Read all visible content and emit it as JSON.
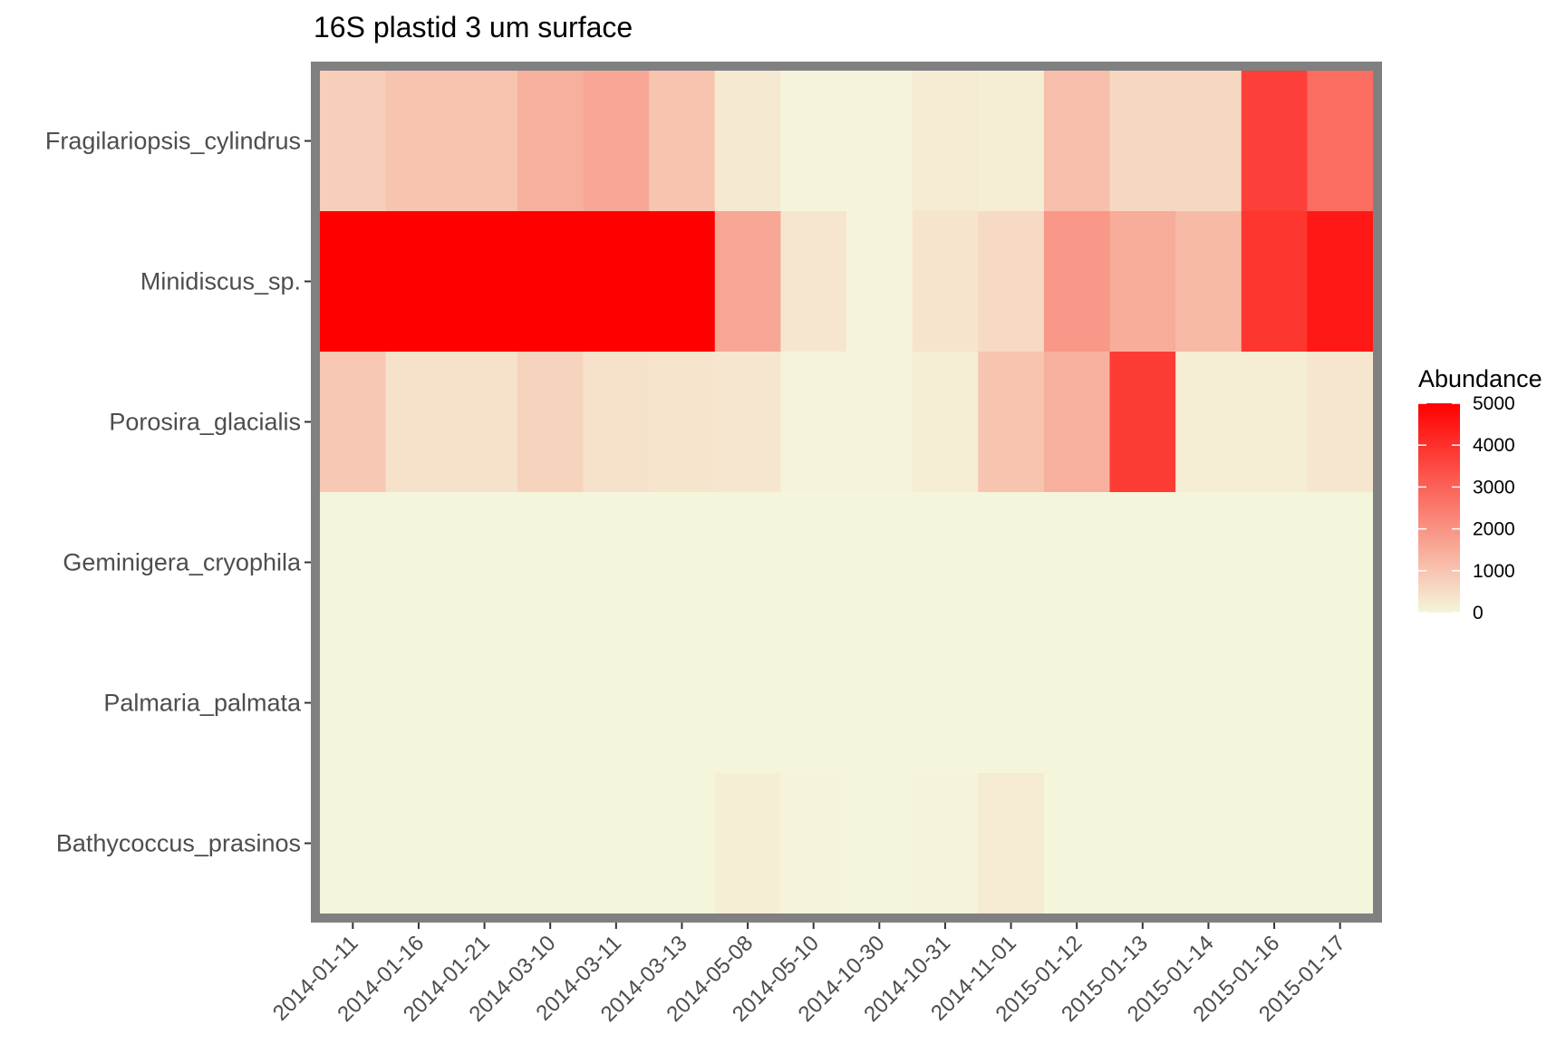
{
  "chart_data": {
    "type": "heatmap",
    "title": "16S plastid 3 um surface",
    "xlabel": "",
    "ylabel": "",
    "x": [
      "2014-01-11",
      "2014-01-16",
      "2014-01-21",
      "2014-03-10",
      "2014-03-11",
      "2014-03-13",
      "2014-05-08",
      "2014-05-10",
      "2014-10-30",
      "2014-10-31",
      "2014-11-01",
      "2015-01-12",
      "2015-01-13",
      "2015-01-14",
      "2015-01-16",
      "2015-01-17"
    ],
    "y": [
      "Fragilariopsis_cylindrus",
      "Minidiscus_sp.",
      "Porosira_glacialis",
      "Geminigera_cryophila",
      "Palmaria_palmata",
      "Bathycoccus_prasinos"
    ],
    "values": [
      [
        800,
        1000,
        1000,
        1400,
        1600,
        1000,
        250,
        20,
        20,
        200,
        150,
        1100,
        600,
        600,
        3700,
        2800
      ],
      [
        5000,
        5000,
        5000,
        5000,
        5000,
        5000,
        1600,
        300,
        20,
        350,
        550,
        1900,
        1500,
        1200,
        3900,
        4500
      ],
      [
        900,
        400,
        400,
        700,
        400,
        350,
        300,
        50,
        50,
        150,
        1000,
        1400,
        3800,
        150,
        150,
        300
      ],
      [
        0,
        0,
        0,
        0,
        0,
        0,
        0,
        0,
        0,
        0,
        0,
        0,
        0,
        0,
        0,
        0
      ],
      [
        0,
        0,
        0,
        0,
        0,
        0,
        0,
        0,
        0,
        0,
        0,
        0,
        0,
        0,
        0,
        0
      ],
      [
        0,
        0,
        0,
        0,
        0,
        0,
        150,
        50,
        0,
        50,
        200,
        0,
        0,
        0,
        0,
        0
      ]
    ],
    "zlim": [
      0,
      5000
    ],
    "legend": {
      "title": "Abundance",
      "ticks": [
        0,
        1000,
        2000,
        3000,
        4000,
        5000
      ],
      "placement": "right"
    },
    "colors": {
      "low": "#f5f5dc",
      "high": "#ff0000",
      "panel_border": "#808080"
    },
    "grid": false
  }
}
